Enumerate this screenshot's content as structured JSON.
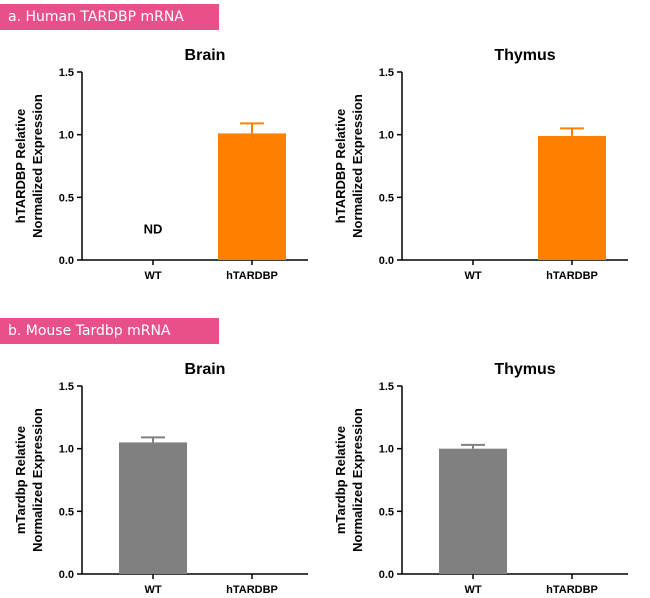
{
  "sections": [
    {
      "label": "a. Human TARDBP mRNA"
    },
    {
      "label": "b. Mouse Tardbp mRNA"
    }
  ],
  "chart_data": [
    {
      "type": "bar",
      "title": "Brain",
      "ylabel_lines": [
        "hTARDBP Relative",
        "Normalized Expression"
      ],
      "categories": [
        "WT",
        "hTARDBP"
      ],
      "values": [
        null,
        1.01
      ],
      "errors": [
        null,
        0.08
      ],
      "annotations": [
        "ND",
        ""
      ],
      "color": "#ff8000",
      "ylim": [
        0,
        1.5
      ],
      "yticks": [
        "0.0",
        "0.5",
        "1.0",
        "1.5"
      ]
    },
    {
      "type": "bar",
      "title": "Thymus",
      "ylabel_lines": [
        "hTARDBP Relative",
        "Normalized Expression"
      ],
      "categories": [
        "WT",
        "hTARDBP"
      ],
      "values": [
        null,
        0.99
      ],
      "errors": [
        null,
        0.06
      ],
      "annotations": [
        "",
        ""
      ],
      "color": "#ff8000",
      "ylim": [
        0,
        1.5
      ],
      "yticks": [
        "0.0",
        "0.5",
        "1.0",
        "1.5"
      ]
    },
    {
      "type": "bar",
      "title": "Brain",
      "ylabel_lines": [
        "mTardbp Relative",
        "Normalized Expression"
      ],
      "categories": [
        "WT",
        "hTARDBP"
      ],
      "values": [
        1.05,
        null
      ],
      "errors": [
        0.04,
        null
      ],
      "annotations": [
        "",
        ""
      ],
      "color": "#808080",
      "ylim": [
        0,
        1.5
      ],
      "yticks": [
        "0.0",
        "0.5",
        "1.0",
        "1.5"
      ]
    },
    {
      "type": "bar",
      "title": "Thymus",
      "ylabel_lines": [
        "mTardbp Relative",
        "Normalized Expression"
      ],
      "categories": [
        "WT",
        "hTARDBP"
      ],
      "values": [
        1.0,
        null
      ],
      "errors": [
        0.03,
        null
      ],
      "annotations": [
        "",
        ""
      ],
      "color": "#808080",
      "ylim": [
        0,
        1.5
      ],
      "yticks": [
        "0.0",
        "0.5",
        "1.0",
        "1.5"
      ]
    }
  ]
}
